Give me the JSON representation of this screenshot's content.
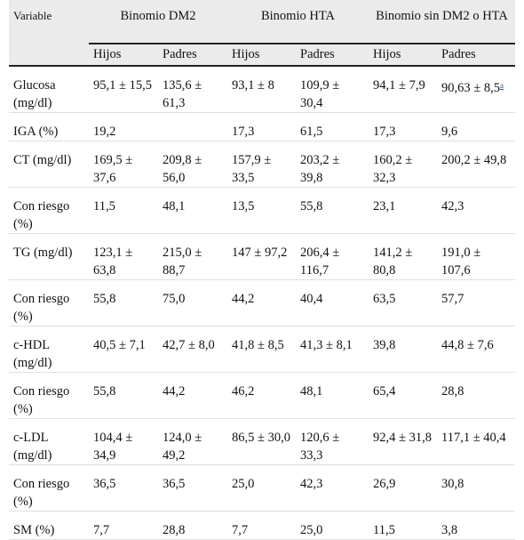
{
  "header": {
    "variable": "Variable",
    "groups": [
      "Binomio DM2",
      "Binomio HTA",
      "Binomio sin DM2 o HTA"
    ],
    "subcols": [
      "Hijos",
      "Padres",
      "Hijos",
      "Padres",
      "Hijos",
      "Padres"
    ]
  },
  "rows": [
    {
      "label": "Glucosa (mg/dl)",
      "cells": [
        "95,1 ± 15,5",
        "135,6 ± 61,3",
        "93,1 ± 8",
        "109,9 ± 30,4",
        "94,1 ± 7,9",
        "90,63 ± 8,5"
      ],
      "footnote": "a"
    },
    {
      "label": "IGA (%)",
      "cells": [
        "19,2",
        "",
        "17,3",
        "61,5",
        "17,3",
        "9,6"
      ]
    },
    {
      "label": "CT (mg/dl)",
      "cells": [
        "169,5 ± 37,6",
        "209,8 ± 56,0",
        "157,9 ± 33,5",
        "203,2 ± 39,8",
        "160,2 ± 32,3",
        "200,2 ± 49,8"
      ]
    },
    {
      "label": "Con riesgo (%)",
      "cells": [
        "11,5",
        "48,1",
        "13,5",
        "55,8",
        "23,1",
        "42,3"
      ]
    },
    {
      "label": "TG (mg/dl)",
      "cells": [
        "123,1 ± 63,8",
        "215,0 ± 88,7",
        "147 ± 97,2",
        "206,4 ± 116,7",
        "141,2 ± 80,8",
        "191,0 ± 107,6"
      ]
    },
    {
      "label": "Con riesgo (%)",
      "cells": [
        "55,8",
        "75,0",
        "44,2",
        "40,4",
        "63,5",
        "57,7"
      ]
    },
    {
      "label": "c-HDL (mg/dl)",
      "cells": [
        "40,5 ± 7,1",
        "42,7 ± 8,0",
        "41,8 ± 8,5",
        "41,3 ± 8,1",
        "39,8",
        "44,8 ± 7,6"
      ]
    },
    {
      "label": "Con riesgo (%)",
      "cells": [
        "55,8",
        "44,2",
        "46,2",
        "48,1",
        "65,4",
        "28,8"
      ]
    },
    {
      "label": "c-LDL (mg/dl)",
      "cells": [
        "104,4 ± 34,9",
        "124,0 ± 49,2",
        "86,5 ± 30,0",
        "120,6 ± 33,3",
        "92,4 ± 31,8",
        "117,1 ± 40,4"
      ]
    },
    {
      "label": "Con riesgo (%)",
      "cells": [
        "36,5",
        "36,5",
        "25,0",
        "42,3",
        "26,9",
        "30,8"
      ]
    },
    {
      "label": "SM (%)",
      "cells": [
        "7,7",
        "28,8",
        "7,7",
        "25,0",
        "11,5",
        "3,8"
      ]
    }
  ]
}
